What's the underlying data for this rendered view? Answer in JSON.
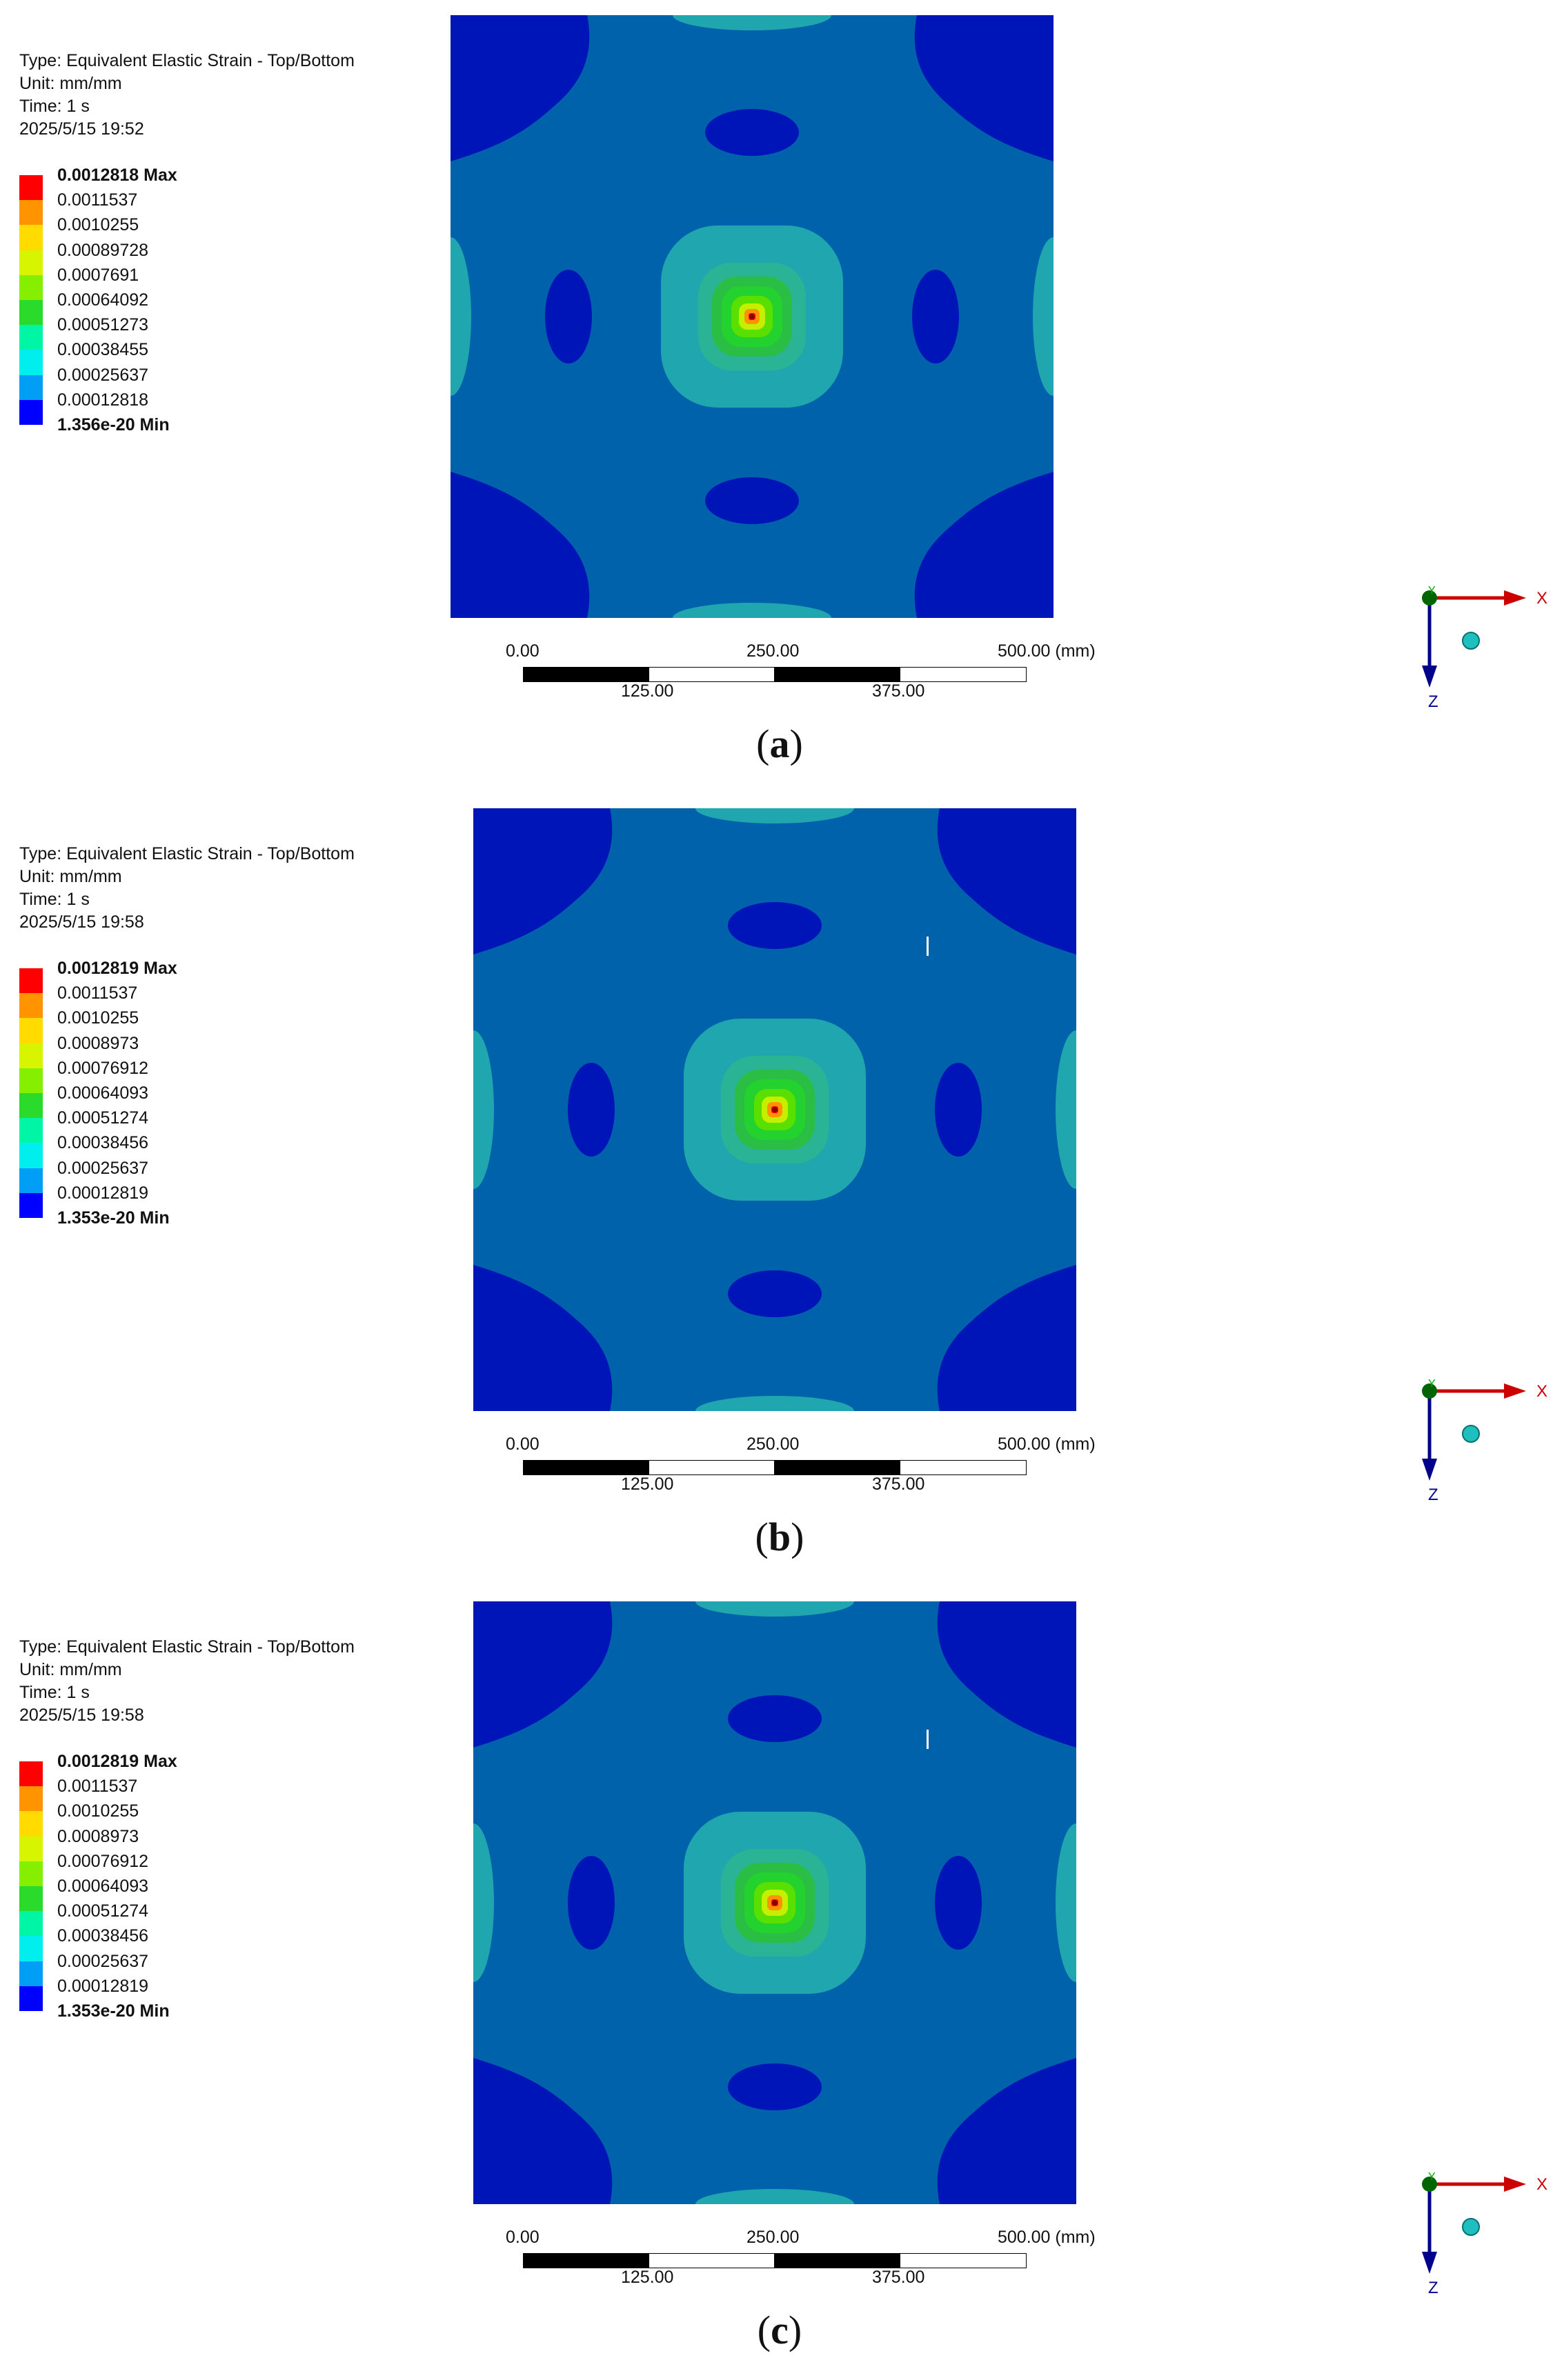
{
  "colors": {
    "plate_bg": "#0062AA",
    "deep_blue": "#0015B7",
    "teal": "#1FA6AE",
    "legend": [
      "#FF0000",
      "#FF9400",
      "#FFDB00",
      "#D7F500",
      "#86EF00",
      "#2BDB2B",
      "#00F5A4",
      "#00EEEE",
      "#009FF5",
      "#0000FF"
    ],
    "axis_x": "#CC0000",
    "axis_z": "#00008B",
    "axis_y": "#00AA00"
  },
  "panels": [
    {
      "caption_letter": "a",
      "info": {
        "type": "Type: Equivalent Elastic Strain - Top/Bottom",
        "unit": "Unit: mm/mm",
        "time": "Time: 1 s",
        "date": "2025/5/15 19:52"
      },
      "legend": {
        "max": "0.0012818 Max",
        "values": [
          "0.0011537",
          "0.0010255",
          "0.00089728",
          "0.0007691",
          "0.00064092",
          "0.00051273",
          "0.00038455",
          "0.00025637",
          "0.00012818"
        ],
        "min": "1.356e-20 Min"
      },
      "scale": {
        "t0": "0.00",
        "t250": "250.00",
        "t500": "500.00 (mm)",
        "t125": "125.00",
        "t375": "375.00"
      },
      "axes": {
        "x": "X",
        "y": "Y",
        "z": "Z"
      },
      "has_cursor": false
    },
    {
      "caption_letter": "b",
      "info": {
        "type": "Type: Equivalent Elastic Strain - Top/Bottom",
        "unit": "Unit: mm/mm",
        "time": "Time: 1 s",
        "date": "2025/5/15 19:58"
      },
      "legend": {
        "max": "0.0012819 Max",
        "values": [
          "0.0011537",
          "0.0010255",
          "0.0008973",
          "0.00076912",
          "0.00064093",
          "0.00051274",
          "0.00038456",
          "0.00025637",
          "0.00012819"
        ],
        "min": "1.353e-20 Min"
      },
      "scale": {
        "t0": "0.00",
        "t250": "250.00",
        "t500": "500.00 (mm)",
        "t125": "125.00",
        "t375": "375.00"
      },
      "axes": {
        "x": "X",
        "y": "Y",
        "z": "Z"
      },
      "has_cursor": true
    },
    {
      "caption_letter": "c",
      "info": {
        "type": "Type: Equivalent Elastic Strain - Top/Bottom",
        "unit": "Unit: mm/mm",
        "time": "Time: 1 s",
        "date": "2025/5/15 19:58"
      },
      "legend": {
        "max": "0.0012819 Max",
        "values": [
          "0.0011537",
          "0.0010255",
          "0.0008973",
          "0.00076912",
          "0.00064093",
          "0.00051274",
          "0.00038456",
          "0.00025637",
          "0.00012819"
        ],
        "min": "1.353e-20 Min"
      },
      "scale": {
        "t0": "0.00",
        "t250": "250.00",
        "t500": "500.00 (mm)",
        "t125": "125.00",
        "t375": "375.00"
      },
      "axes": {
        "x": "X",
        "y": "Y",
        "z": "Z"
      },
      "has_cursor": true
    }
  ]
}
